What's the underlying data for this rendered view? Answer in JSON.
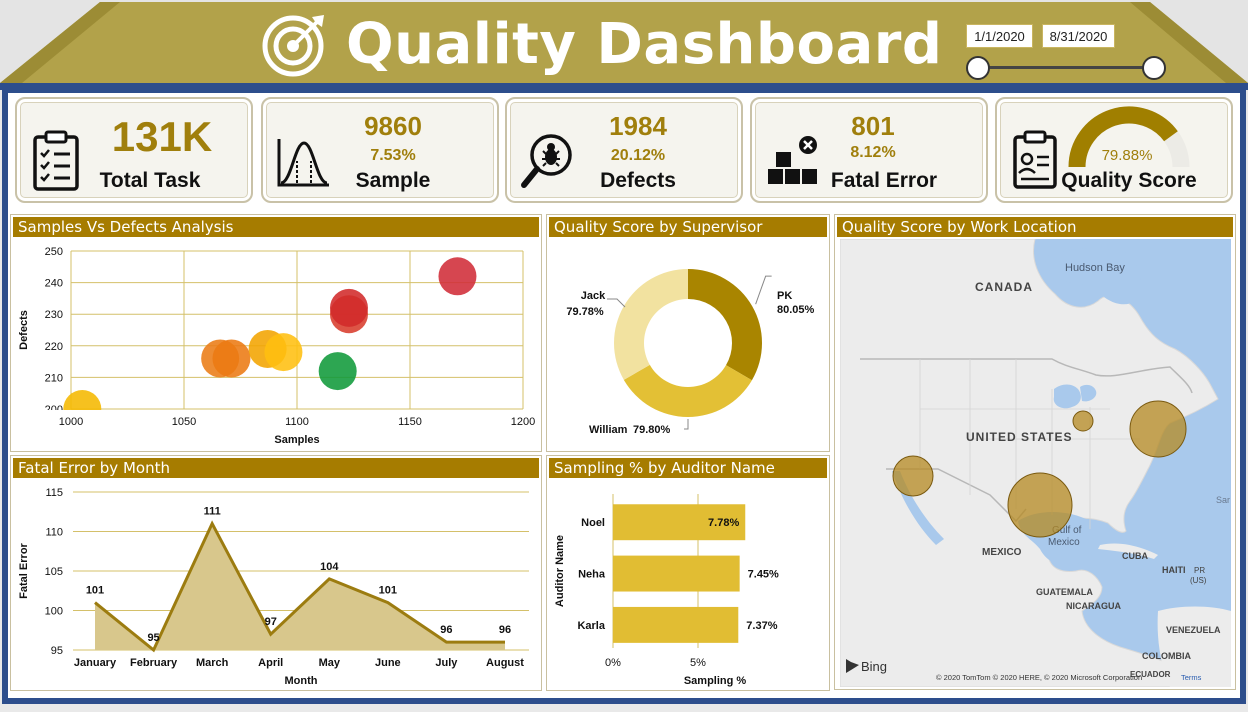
{
  "header": {
    "title": "Quality Dashboard",
    "start_date": "1/1/2020",
    "end_date": "8/31/2020",
    "colors": {
      "gold": "#b2a24a",
      "gold_dark": "#9c8c35",
      "frame_blue": "#2d4e8c",
      "accent": "#a67c00"
    }
  },
  "kpis": {
    "total_task": {
      "value": "131K",
      "label": "Total Task"
    },
    "sample": {
      "value": "9860",
      "pct": "7.53%",
      "label": "Sample"
    },
    "defects": {
      "value": "1984",
      "pct": "20.12%",
      "label": "Defects"
    },
    "fatal_error": {
      "value": "801",
      "pct": "8.12%",
      "label": "Fatal Error"
    },
    "quality_score": {
      "pct": "79.88%",
      "label": "Quality Score",
      "gauge_fraction": 0.7988
    }
  },
  "panels": {
    "scatter_title": "Samples Vs Defects Analysis",
    "donut_title": "Quality Score by Supervisor",
    "map_title": "Quality Score by Work Location",
    "line_title": "Fatal Error by Month",
    "bar_title": "Sampling % by Auditor Name"
  },
  "chart_data": [
    {
      "type": "scatter",
      "title": "Samples Vs Defects Analysis",
      "xlabel": "Samples",
      "ylabel": "Defects",
      "xlim": [
        1000,
        1200
      ],
      "ylim": [
        200,
        250
      ],
      "x_ticks": [
        "1000",
        "1050",
        "1100",
        "1150",
        "1200"
      ],
      "y_ticks": [
        "200",
        "210",
        "220",
        "230",
        "240",
        "250"
      ],
      "grid": true,
      "points": [
        {
          "x": 1005,
          "y": 200,
          "color": "#f5b800"
        },
        {
          "x": 1066,
          "y": 216,
          "color": "#ea7c16"
        },
        {
          "x": 1071,
          "y": 216,
          "color": "#ec7a12"
        },
        {
          "x": 1087,
          "y": 219,
          "color": "#f3a400"
        },
        {
          "x": 1094,
          "y": 218,
          "color": "#ffbf10"
        },
        {
          "x": 1118,
          "y": 212,
          "color": "#109a3a"
        },
        {
          "x": 1123,
          "y": 230,
          "color": "#d83c2c"
        },
        {
          "x": 1123,
          "y": 232,
          "color": "#d12a2a"
        },
        {
          "x": 1171,
          "y": 242,
          "color": "#d02c38"
        }
      ]
    },
    {
      "type": "pie",
      "title": "Quality Score by Supervisor",
      "slices": [
        {
          "name": "PK",
          "label": "80.05%",
          "value": 80.05,
          "color": "#a98500"
        },
        {
          "name": "William",
          "label": "79.80%",
          "value": 79.8,
          "color": "#e3c035"
        },
        {
          "name": "Jack",
          "label": "79.78%",
          "value": 79.78,
          "color": "#f2e2a0"
        }
      ]
    },
    {
      "type": "area",
      "title": "Fatal Error by Month",
      "xlabel": "Month",
      "ylabel": "Fatal Error",
      "ylim": [
        95,
        115
      ],
      "y_ticks": [
        "95",
        "100",
        "105",
        "110",
        "115"
      ],
      "categories": [
        "January",
        "February",
        "March",
        "April",
        "May",
        "June",
        "July",
        "August"
      ],
      "values": [
        101,
        95,
        111,
        97,
        104,
        101,
        96,
        96
      ]
    },
    {
      "type": "bar",
      "title": "Sampling % by Auditor Name",
      "xlabel": "Sampling %",
      "ylabel": "Auditor Name",
      "x_ticks": [
        "0%",
        "5%"
      ],
      "xlim": [
        0,
        12
      ],
      "categories": [
        "Noel",
        "Neha",
        "Karla"
      ],
      "values": [
        7.78,
        7.45,
        7.37
      ],
      "labels": [
        "7.78%",
        "7.45%",
        "7.37%"
      ]
    }
  ],
  "map": {
    "labels": {
      "hudson": "Hudson Bay",
      "canada": "CANADA",
      "us": "UNITED STATES",
      "mexico": "MEXICO",
      "gulf": "Gulf of",
      "gulf2": "Mexico",
      "cuba": "CUBA",
      "haiti": "HAITI",
      "pr": "PR",
      "pr2": "(US)",
      "guatemala": "GUATEMALA",
      "nicaragua": "NICARAGUA",
      "venezuela": "VENEZUELA",
      "colombia": "COLOMBIA",
      "ecuador": "ECUADOR",
      "sargasso": "Sar",
      "bing": "Bing",
      "copyright": "© 2020 TomTom © 2020 HERE, © 2020 Microsoft Corporation",
      "terms": "Terms"
    },
    "bubble_color": "#b58a22"
  }
}
